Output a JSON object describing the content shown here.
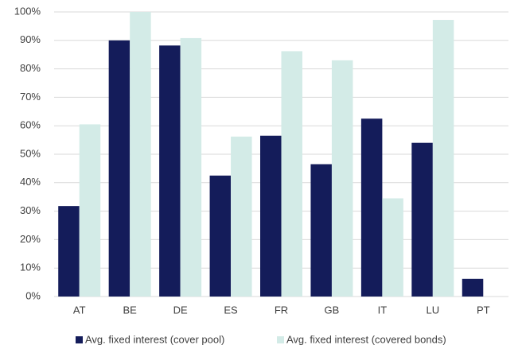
{
  "chart_data": {
    "type": "bar",
    "categories": [
      "AT",
      "BE",
      "DE",
      "ES",
      "FR",
      "GB",
      "IT",
      "LU",
      "PT"
    ],
    "series": [
      {
        "name": "Avg. fixed interest (cover pool)",
        "color": "#141c5a",
        "values": [
          31.8,
          90,
          88.2,
          42.5,
          56.5,
          46.5,
          62.5,
          54,
          6.2
        ]
      },
      {
        "name": "Avg.  fixed interest (covered bonds)",
        "color": "#d3ebe7",
        "values": [
          60.5,
          100,
          90.8,
          56.2,
          86.2,
          83,
          34.5,
          97.2,
          null
        ]
      }
    ],
    "ylim": [
      0,
      100
    ],
    "yticks": [
      {
        "value": 0,
        "label": "0%"
      },
      {
        "value": 10,
        "label": "10%"
      },
      {
        "value": 20,
        "label": "20%"
      },
      {
        "value": 30,
        "label": "30%"
      },
      {
        "value": 40,
        "label": "40%"
      },
      {
        "value": 50,
        "label": "50%"
      },
      {
        "value": 60,
        "label": "60%"
      },
      {
        "value": 70,
        "label": "70%"
      },
      {
        "value": 80,
        "label": "80%"
      },
      {
        "value": 90,
        "label": "90%"
      },
      {
        "value": 100,
        "label": "100%"
      }
    ],
    "grid": true
  }
}
